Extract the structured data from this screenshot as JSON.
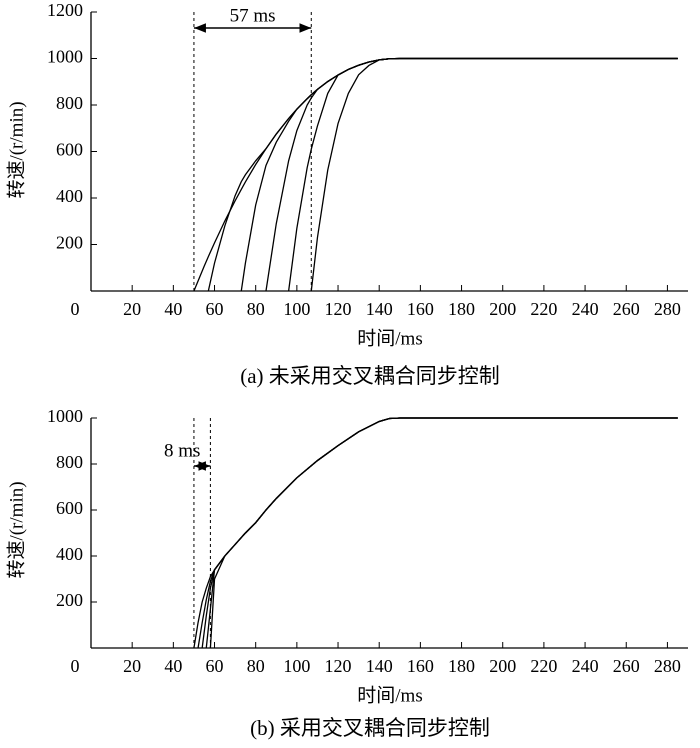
{
  "chart_data": [
    {
      "type": "line",
      "xlabel": "时间/ms",
      "ylabel": "转速/(r/min)",
      "caption": "(a) 未采用交叉耦合同步控制",
      "x": [
        50,
        55,
        57,
        60,
        65,
        70,
        73,
        75,
        80,
        85,
        90,
        96,
        100,
        105,
        107,
        110,
        115,
        120,
        125,
        130,
        135,
        140,
        145,
        150,
        200,
        285
      ],
      "series": [
        {
          "color": "#000000",
          "values": [
            0,
            107,
            148,
            207,
            301,
            388,
            437,
            469,
            544,
            612,
            675,
            742,
            782,
            827,
            844,
            867,
            901,
            929,
            953,
            971,
            985,
            994,
            999,
            1000,
            1000,
            1000
          ]
        },
        {
          "color": "#000000",
          "values": [
            null,
            null,
            0,
            120,
            280,
            410,
            470,
            500,
            560,
            612,
            675,
            742,
            782,
            827,
            844,
            867,
            901,
            929,
            953,
            971,
            985,
            994,
            999,
            1000,
            1000,
            1000
          ]
        },
        {
          "color": "#000000",
          "values": [
            null,
            null,
            null,
            null,
            null,
            null,
            0,
            120,
            370,
            540,
            640,
            730,
            782,
            827,
            844,
            867,
            901,
            929,
            953,
            971,
            985,
            994,
            999,
            1000,
            1000,
            1000
          ]
        },
        {
          "color": "#000000",
          "values": [
            null,
            null,
            null,
            null,
            null,
            null,
            null,
            null,
            null,
            0,
            290,
            560,
            690,
            800,
            830,
            867,
            901,
            929,
            953,
            971,
            985,
            994,
            999,
            1000,
            1000,
            1000
          ]
        },
        {
          "color": "#000000",
          "values": [
            null,
            null,
            null,
            null,
            null,
            null,
            null,
            null,
            null,
            null,
            null,
            0,
            270,
            530,
            610,
            710,
            850,
            929,
            953,
            971,
            985,
            994,
            999,
            1000,
            1000,
            1000
          ]
        },
        {
          "color": "#000000",
          "values": [
            null,
            null,
            null,
            null,
            null,
            null,
            null,
            null,
            null,
            null,
            null,
            null,
            null,
            null,
            0,
            230,
            520,
            720,
            850,
            930,
            970,
            994,
            999,
            1000,
            1000,
            1000
          ]
        }
      ],
      "xlim": [
        0,
        290
      ],
      "xticks": [
        0,
        20,
        40,
        60,
        80,
        100,
        120,
        140,
        160,
        180,
        200,
        220,
        240,
        260,
        280
      ],
      "ylim": [
        0,
        1200
      ],
      "yticks": [
        200,
        400,
        600,
        800,
        1000,
        1200
      ],
      "annotation": {
        "text": "57 ms",
        "x": [
          50,
          107
        ]
      }
    },
    {
      "type": "line",
      "xlabel": "时间/ms",
      "ylabel": "转速/(r/min)",
      "caption": "(b) 采用交叉耦合同步控制",
      "x": [
        50,
        52,
        54,
        56,
        58,
        60,
        65,
        70,
        75,
        80,
        85,
        90,
        100,
        110,
        120,
        130,
        140,
        145,
        150,
        200,
        285
      ],
      "series": [
        {
          "color": "#000000",
          "values": [
            0,
            110,
            200,
            260,
            310,
            340,
            400,
            450,
            500,
            545,
            600,
            650,
            740,
            815,
            880,
            940,
            985,
            998,
            1000,
            1000,
            1000
          ]
        },
        {
          "color": "#000000",
          "values": [
            null,
            0,
            110,
            210,
            290,
            340,
            400,
            450,
            500,
            545,
            600,
            650,
            740,
            815,
            880,
            940,
            985,
            998,
            1000,
            1000,
            1000
          ]
        },
        {
          "color": "#000000",
          "values": [
            null,
            null,
            0,
            140,
            260,
            340,
            400,
            450,
            500,
            545,
            600,
            650,
            740,
            815,
            880,
            940,
            985,
            998,
            1000,
            1000,
            1000
          ]
        },
        {
          "color": "#000000",
          "values": [
            null,
            null,
            null,
            0,
            170,
            340,
            400,
            450,
            500,
            545,
            600,
            650,
            740,
            815,
            880,
            940,
            985,
            998,
            1000,
            1000,
            1000
          ]
        },
        {
          "color": "#000000",
          "values": [
            null,
            null,
            null,
            null,
            0,
            300,
            400,
            450,
            500,
            545,
            600,
            650,
            740,
            815,
            880,
            940,
            985,
            998,
            1000,
            1000,
            1000
          ]
        }
      ],
      "xlim": [
        0,
        290
      ],
      "xticks": [
        0,
        20,
        40,
        60,
        80,
        100,
        120,
        140,
        160,
        180,
        200,
        220,
        240,
        260,
        280
      ],
      "ylim": [
        0,
        1000
      ],
      "yticks": [
        200,
        400,
        600,
        800,
        1000
      ],
      "annotation": {
        "text": "8 ms",
        "x": [
          50,
          58
        ]
      }
    }
  ]
}
